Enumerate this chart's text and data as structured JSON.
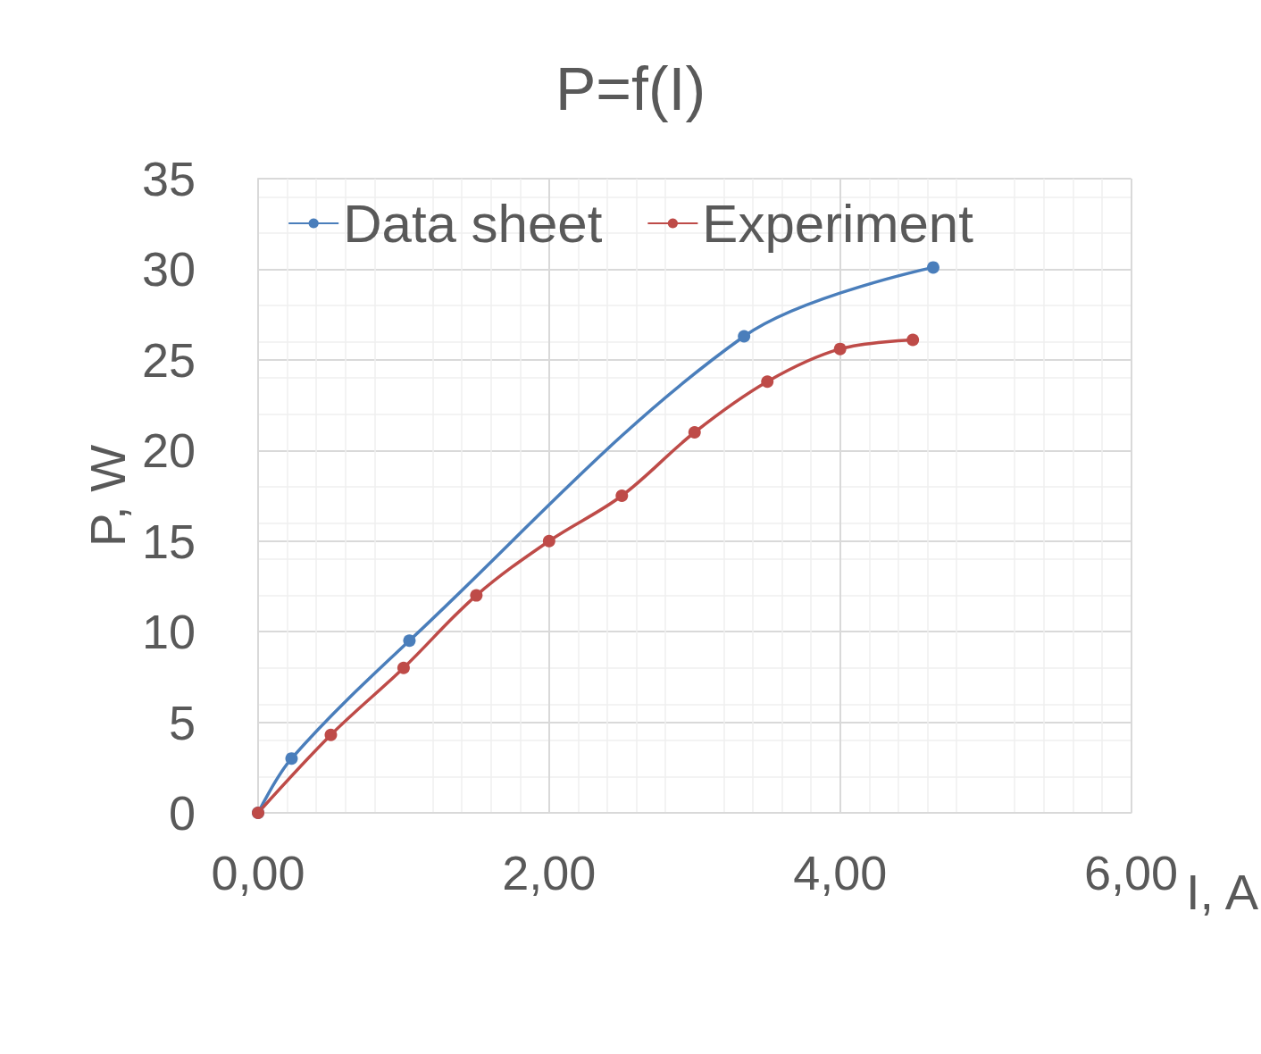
{
  "chart_data": {
    "type": "line",
    "title": "P=f(I)",
    "xlabel": "I, A",
    "ylabel": "P, W",
    "xlim": [
      0,
      6
    ],
    "xticks": [
      {
        "value": 0,
        "label": "0,00"
      },
      {
        "value": 2,
        "label": "2,00"
      },
      {
        "value": 4,
        "label": "4,00"
      },
      {
        "value": 6,
        "label": "6,00"
      }
    ],
    "ylim": [
      0,
      35
    ],
    "yticks": [
      0,
      5,
      10,
      15,
      20,
      25,
      30,
      35
    ],
    "grid": true,
    "legend": "top",
    "marker": "circle",
    "line_style": "solid",
    "series": [
      {
        "name": "Data sheet",
        "color": "#4a7ebb",
        "x": [
          0,
          0.23,
          1.04,
          3.34,
          4.64
        ],
        "values": [
          0,
          3.0,
          9.5,
          26.3,
          30.1
        ]
      },
      {
        "name": "Experiment",
        "color": "#be4b48",
        "x": [
          0,
          0.5,
          1.0,
          1.5,
          2.0,
          2.5,
          3.0,
          3.5,
          4.0,
          4.5
        ],
        "values": [
          0,
          4.3,
          8.0,
          12.0,
          15.0,
          17.5,
          21.0,
          23.8,
          25.6,
          26.1
        ]
      }
    ]
  }
}
